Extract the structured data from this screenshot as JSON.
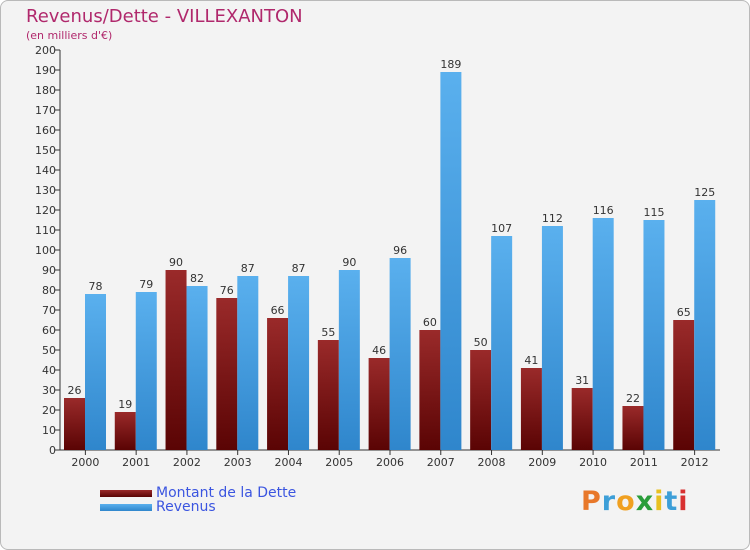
{
  "chart_data": {
    "type": "bar",
    "title": "Revenus/Dette - VILLEXANTON",
    "subtitle": "(en milliers d'€)",
    "categories": [
      "2000",
      "2001",
      "2002",
      "2003",
      "2004",
      "2005",
      "2006",
      "2007",
      "2008",
      "2009",
      "2010",
      "2011",
      "2012"
    ],
    "series": [
      {
        "name": "Montant de la Dette",
        "color": "#7a0e0e",
        "values": [
          26,
          19,
          90,
          76,
          66,
          55,
          46,
          60,
          50,
          41,
          31,
          22,
          65
        ]
      },
      {
        "name": "Revenus",
        "color": "#4da6e8",
        "values": [
          78,
          79,
          82,
          87,
          87,
          90,
          96,
          189,
          107,
          112,
          116,
          115,
          125
        ]
      }
    ],
    "ylim": [
      0,
      200
    ],
    "ytick_step": 10,
    "grid": false,
    "legend_position": "bottom-left"
  },
  "brand": {
    "text": "Proxiti",
    "letters": [
      "P",
      "r",
      "o",
      "x",
      "i",
      "t",
      "i"
    ],
    "colors": [
      "#e8782a",
      "#3d9fd8",
      "#f0a020",
      "#2a9d3a",
      "#e8c020",
      "#3d9fd8",
      "#d83030"
    ]
  }
}
